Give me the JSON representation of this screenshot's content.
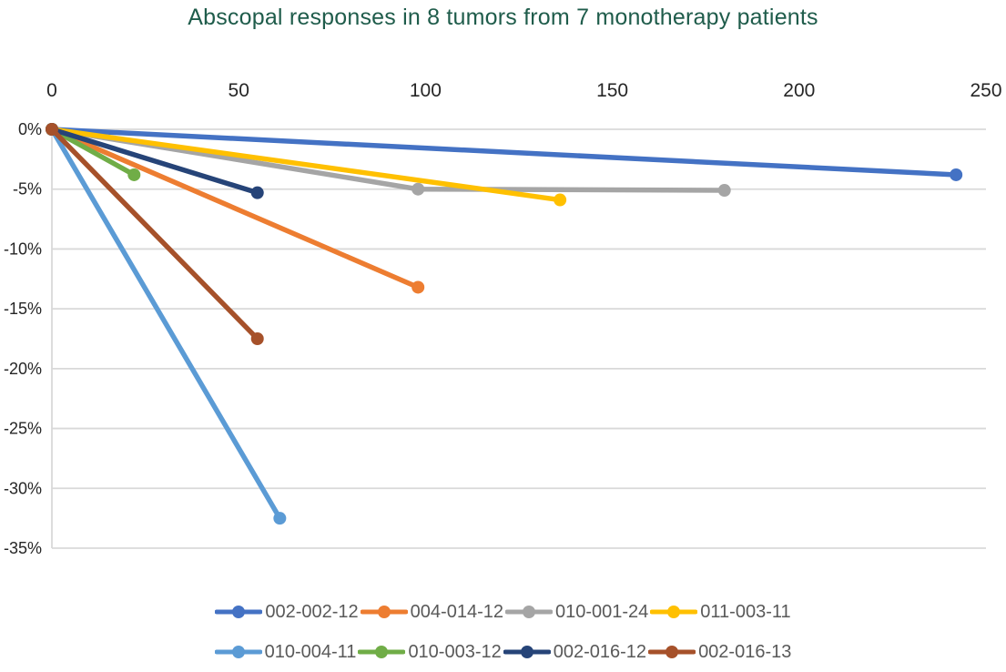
{
  "chart_data": {
    "type": "line",
    "title": "Abscopal responses in 8 tumors from 7 monotherapy patients",
    "xlabel": "",
    "ylabel": "",
    "x_axis": {
      "position": "top",
      "min": 0,
      "max": 250,
      "ticks": [
        0,
        50,
        100,
        150,
        200,
        250
      ]
    },
    "y_axis": {
      "min": -35,
      "max": 0,
      "unit": "percent",
      "tick_values": [
        0,
        -5,
        -10,
        -15,
        -20,
        -25,
        -30,
        -35
      ],
      "tick_labels": [
        "0%",
        "-5%",
        "-10%",
        "-15%",
        "-20%",
        "-25%",
        "-30%",
        "-35%"
      ]
    },
    "grid": "horizontal",
    "legend_position": "bottom",
    "legend_rows": 2,
    "colors": {
      "title_text": "#1F5C4B",
      "axis_text": "#262626",
      "legend_text": "#595959",
      "gridline": "#D9D9D9"
    },
    "series": [
      {
        "name": "002-002-12",
        "color": "#4472C4",
        "points": [
          [
            0,
            0
          ],
          [
            242,
            -3.8
          ]
        ]
      },
      {
        "name": "004-014-12",
        "color": "#ED7D31",
        "points": [
          [
            0,
            0
          ],
          [
            98,
            -13.2
          ]
        ]
      },
      {
        "name": "010-001-24",
        "color": "#A5A5A5",
        "points": [
          [
            0,
            0
          ],
          [
            98,
            -5.0
          ],
          [
            180,
            -5.1
          ]
        ]
      },
      {
        "name": "011-003-11",
        "color": "#FFC000",
        "points": [
          [
            0,
            0
          ],
          [
            136,
            -5.9
          ]
        ]
      },
      {
        "name": "010-004-11",
        "color": "#5B9BD5",
        "points": [
          [
            0,
            0
          ],
          [
            61,
            -32.5
          ]
        ]
      },
      {
        "name": "010-003-12",
        "color": "#70AD47",
        "points": [
          [
            0,
            0
          ],
          [
            22,
            -3.8
          ]
        ]
      },
      {
        "name": "002-016-12",
        "color": "#264478",
        "points": [
          [
            0,
            0
          ],
          [
            55,
            -5.3
          ]
        ]
      },
      {
        "name": "002-016-13",
        "color": "#A6512A",
        "points": [
          [
            0,
            0
          ],
          [
            55,
            -17.5
          ]
        ]
      }
    ]
  }
}
